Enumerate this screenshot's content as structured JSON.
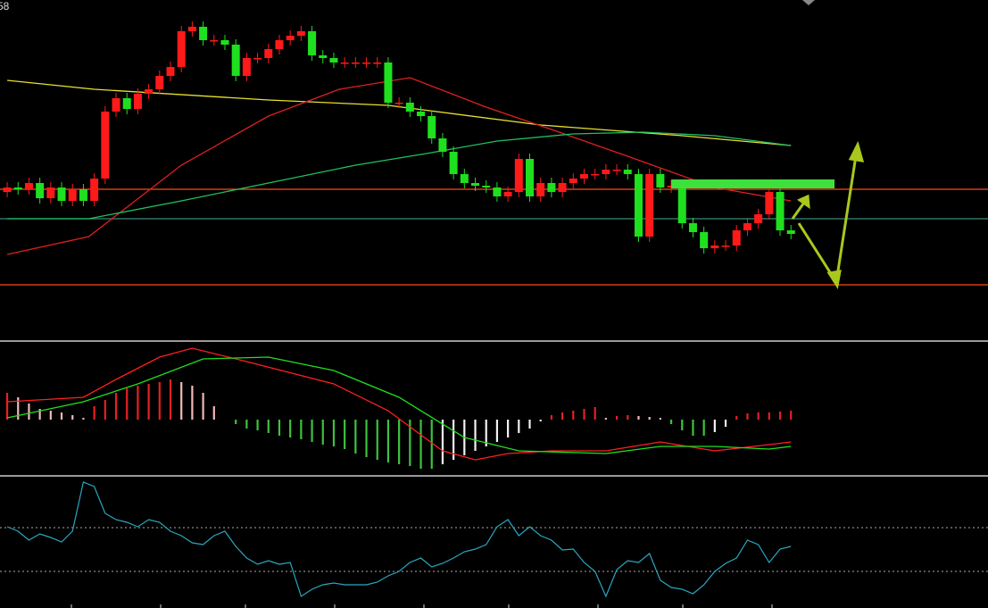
{
  "corner_label": "58",
  "chart_data": [
    {
      "type": "candlestick",
      "xlim": [
        -0.66,
        90.1
      ],
      "ylim": [
        0,
        380
      ],
      "up_color": "#ff1a1a",
      "down_color": "#1ee01e",
      "open": [
        165,
        170,
        168,
        175,
        158,
        170,
        155,
        168,
        155,
        180,
        255,
        270,
        258,
        275,
        280,
        295,
        305,
        345,
        350,
        335,
        335,
        330,
        295,
        315,
        315,
        325,
        335,
        340,
        345,
        318,
        315,
        310,
        310,
        310,
        310,
        310,
        265,
        265,
        255,
        250,
        225,
        210,
        185,
        175,
        172,
        170,
        160,
        165,
        202,
        160,
        175,
        165,
        175,
        180,
        185,
        185,
        190,
        190,
        185,
        115,
        185,
        170,
        172,
        130,
        120,
        102,
        105,
        105,
        122,
        130,
        140,
        165,
        122
      ],
      "high": [
        176,
        176,
        181,
        181,
        176,
        176,
        174,
        174,
        186,
        261,
        276,
        276,
        281,
        286,
        301,
        311,
        351,
        356,
        356,
        341,
        341,
        336,
        321,
        321,
        331,
        341,
        346,
        351,
        351,
        324,
        321,
        316,
        316,
        316,
        316,
        316,
        271,
        271,
        261,
        256,
        231,
        216,
        191,
        181,
        178,
        176,
        171,
        208,
        208,
        181,
        181,
        181,
        186,
        191,
        191,
        196,
        196,
        196,
        191,
        191,
        191,
        178,
        178,
        136,
        126,
        111,
        111,
        128,
        136,
        146,
        171,
        171,
        128
      ],
      "low": [
        159,
        162,
        162,
        152,
        152,
        149,
        149,
        149,
        149,
        174,
        249,
        252,
        252,
        269,
        274,
        289,
        299,
        339,
        329,
        329,
        324,
        289,
        289,
        309,
        309,
        319,
        329,
        334,
        312,
        309,
        304,
        304,
        304,
        304,
        304,
        259,
        259,
        249,
        244,
        219,
        204,
        179,
        169,
        166,
        164,
        154,
        154,
        159,
        154,
        154,
        159,
        159,
        169,
        174,
        179,
        179,
        184,
        179,
        109,
        109,
        164,
        164,
        124,
        114,
        96,
        96,
        99,
        99,
        116,
        124,
        134,
        116,
        112
      ],
      "close": [
        170,
        168,
        175,
        158,
        170,
        155,
        168,
        155,
        180,
        255,
        270,
        258,
        275,
        280,
        295,
        305,
        345,
        350,
        335,
        335,
        330,
        295,
        315,
        315,
        325,
        335,
        340,
        345,
        318,
        315,
        310,
        310,
        310,
        310,
        310,
        265,
        265,
        255,
        250,
        225,
        210,
        185,
        175,
        172,
        170,
        160,
        165,
        202,
        160,
        175,
        165,
        175,
        180,
        185,
        185,
        190,
        190,
        185,
        115,
        185,
        170,
        172,
        130,
        120,
        102,
        105,
        105,
        122,
        130,
        140,
        165,
        122,
        118
      ],
      "series": [
        {
          "color": "#e8e030",
          "x": [
            0,
            8,
            24,
            35,
            49,
            62,
            72
          ],
          "values": [
            290,
            280,
            268,
            262,
            240,
            228,
            217
          ]
        },
        {
          "color": "#e02020",
          "x": [
            0,
            7.5,
            16,
            24,
            30.5,
            37,
            44,
            50,
            57,
            65,
            72
          ],
          "values": [
            95,
            115,
            195,
            250,
            280,
            293,
            260,
            235,
            205,
            170,
            155
          ]
        },
        {
          "color": "#20c060",
          "x": [
            0,
            7.5,
            16,
            24,
            32,
            38.5,
            45,
            52,
            58.4,
            65,
            72
          ],
          "values": [
            135,
            135,
            155,
            175,
            195,
            208,
            222,
            230,
            232,
            228,
            217
          ]
        }
      ],
      "levels": [
        {
          "value": 168,
          "color": "#ff4a1a"
        },
        {
          "value": 135,
          "color": "#3a8a7a"
        },
        {
          "value": 61,
          "color": "#ff4a1a"
        }
      ],
      "zone": {
        "x": [
          61,
          76
        ],
        "y": [
          169,
          179
        ],
        "color": "#3ee03e"
      }
    },
    {
      "type": "bar",
      "xlim": [
        -0.66,
        90.1
      ],
      "ylim": [
        -62,
        86
      ],
      "values": [
        30,
        25,
        18,
        12,
        10,
        8,
        5,
        2,
        15,
        22,
        30,
        35,
        38,
        40,
        42,
        45,
        42,
        38,
        30,
        15,
        0,
        -5,
        -10,
        -12,
        -15,
        -18,
        -20,
        -22,
        -25,
        -28,
        -30,
        -33,
        -38,
        -42,
        -45,
        -48,
        -50,
        -52,
        -55,
        -55,
        -50,
        -45,
        -40,
        -35,
        -30,
        -25,
        -20,
        -15,
        -10,
        -2,
        5,
        8,
        10,
        12,
        14,
        2,
        4,
        5,
        4,
        3,
        2,
        -5,
        -12,
        -18,
        -18,
        -14,
        -8,
        4,
        7,
        8,
        8,
        9,
        10
      ],
      "series": [
        {
          "color": "#ff2020",
          "x": [
            0,
            7,
            10,
            14,
            17,
            22,
            30,
            35,
            40,
            43,
            46,
            50,
            55,
            60,
            65,
            70,
            72
          ],
          "values": [
            20,
            25,
            45,
            70,
            80,
            65,
            40,
            10,
            -35,
            -45,
            -38,
            -35,
            -35,
            -25,
            -35,
            -28,
            -25
          ]
        },
        {
          "color": "#20e020",
          "x": [
            0,
            7,
            12,
            18,
            24,
            30,
            36,
            42,
            47,
            55,
            60,
            65,
            70,
            72
          ],
          "values": [
            2,
            20,
            40,
            68,
            70,
            55,
            25,
            -20,
            -35,
            -38,
            -30,
            -30,
            -33,
            -30
          ]
        }
      ]
    },
    {
      "type": "line",
      "xlim": [
        -0.66,
        90.1
      ],
      "ylim": [
        0,
        146
      ],
      "color": "#2aa8c0",
      "guides": [
        90,
        41
      ],
      "values": [
        91,
        86,
        76,
        83,
        79,
        74,
        86,
        141,
        136,
        106,
        99,
        96,
        91,
        99,
        96,
        86,
        81,
        73,
        71,
        81,
        86,
        69,
        56,
        49,
        53,
        49,
        51,
        13,
        21,
        26,
        28,
        26,
        26,
        26,
        29,
        36,
        41,
        51,
        56,
        46,
        50,
        56,
        63,
        66,
        71,
        91,
        99,
        81,
        91,
        81,
        76,
        65,
        66,
        51,
        41,
        13,
        43,
        53,
        51,
        61,
        31,
        23,
        21,
        16,
        26,
        41,
        50,
        56,
        76,
        71,
        51,
        66,
        69
      ]
    }
  ]
}
